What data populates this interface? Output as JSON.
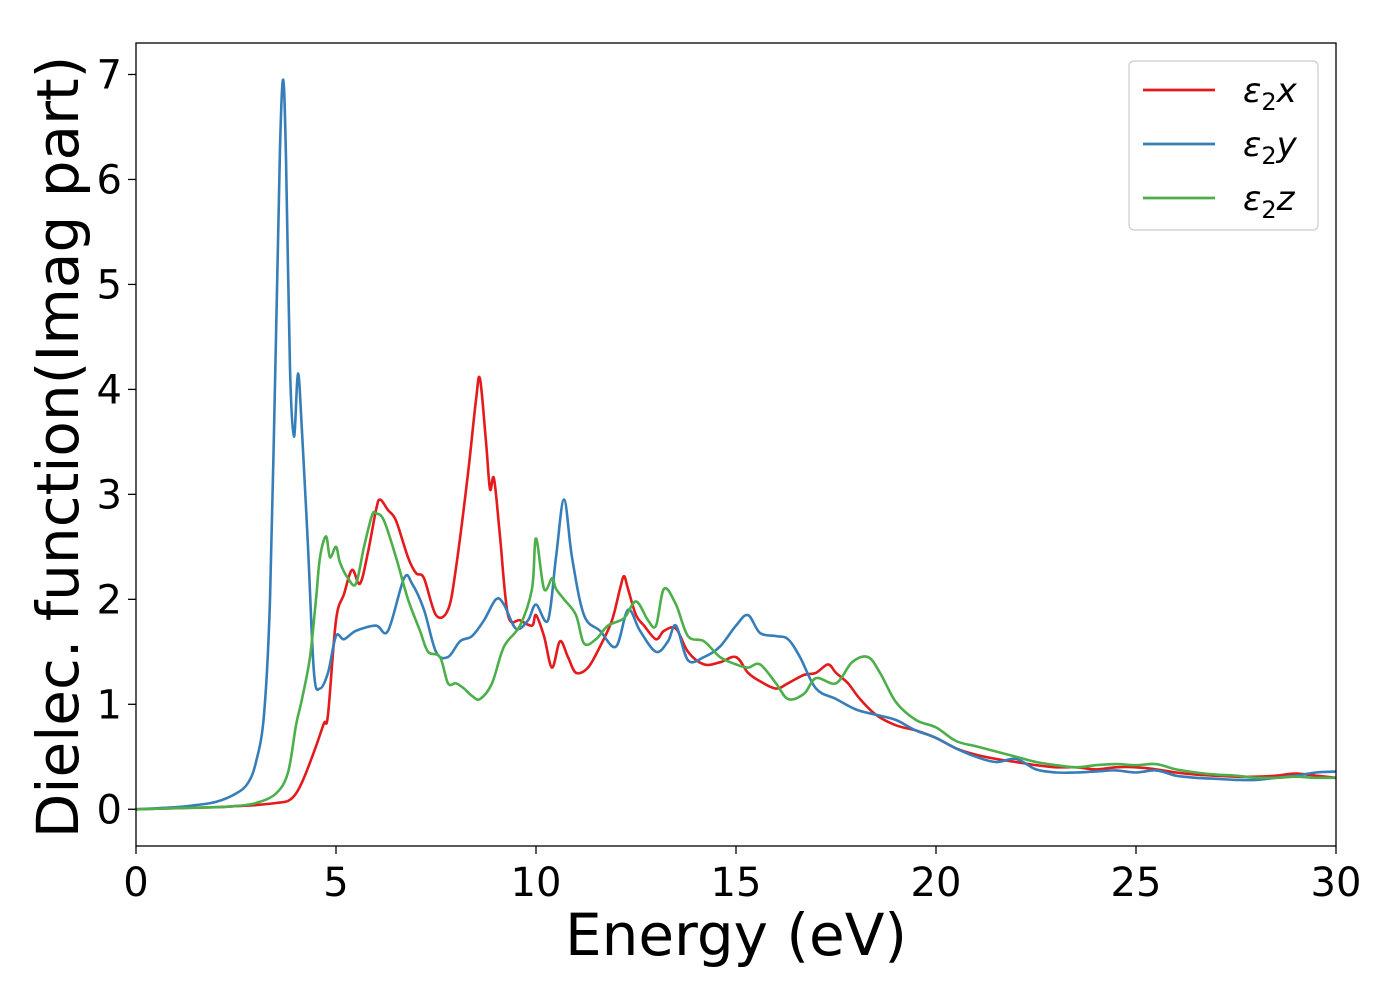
{
  "chart_data": {
    "type": "line",
    "xlabel": "Energy (eV)",
    "ylabel": "Dielec. function(Imag part)",
    "xlim": [
      0,
      30
    ],
    "ylim": [
      -0.35,
      7.3
    ],
    "xticks": [
      0,
      5,
      10,
      15,
      20,
      25,
      30
    ],
    "yticks": [
      0,
      1,
      2,
      3,
      4,
      5,
      6,
      7
    ],
    "xtick_labels": [
      "0",
      "5",
      "10",
      "15",
      "20",
      "25",
      "30"
    ],
    "ytick_labels": [
      "0",
      "1",
      "2",
      "3",
      "4",
      "5",
      "6",
      "7"
    ],
    "grid": false,
    "legend_position": "top-right",
    "series": [
      {
        "name": "ε₂x",
        "legend": {
          "base": "ε",
          "sub": "2",
          "var": "x"
        },
        "color": "#e41a1c",
        "x": [
          0,
          1,
          2,
          2.5,
          3,
          3.5,
          3.8,
          4,
          4.2,
          4.5,
          4.7,
          4.8,
          5,
          5.2,
          5.4,
          5.6,
          5.8,
          6,
          6.1,
          6.3,
          6.5,
          6.8,
          7,
          7.2,
          7.5,
          7.8,
          8,
          8.3,
          8.5,
          8.6,
          8.75,
          8.85,
          8.95,
          9.1,
          9.3,
          9.6,
          9.9,
          10,
          10.2,
          10.4,
          10.6,
          10.8,
          11,
          11.3,
          11.6,
          11.9,
          12.1,
          12.2,
          12.3,
          12.5,
          12.7,
          13,
          13.2,
          13.5,
          13.8,
          14.2,
          14.6,
          15,
          15.3,
          15.6,
          16,
          16.3,
          16.7,
          17,
          17.3,
          17.5,
          17.8,
          18.1,
          18.5,
          19,
          19.5,
          20,
          20.5,
          21,
          21.5,
          22,
          22.5,
          23,
          23.5,
          24,
          24.5,
          25,
          25.5,
          26,
          26.5,
          27,
          27.5,
          28,
          28.5,
          29,
          29.5,
          30
        ],
        "y": [
          0,
          0.01,
          0.02,
          0.03,
          0.04,
          0.06,
          0.08,
          0.15,
          0.3,
          0.6,
          0.82,
          0.9,
          1.8,
          2.05,
          2.28,
          2.15,
          2.45,
          2.85,
          2.95,
          2.85,
          2.75,
          2.4,
          2.25,
          2.2,
          1.85,
          1.9,
          2.3,
          3.2,
          3.9,
          4.1,
          3.5,
          3.05,
          3.15,
          2.6,
          1.85,
          1.8,
          1.75,
          1.85,
          1.65,
          1.35,
          1.6,
          1.45,
          1.3,
          1.35,
          1.55,
          1.8,
          2.1,
          2.22,
          2.1,
          1.85,
          1.75,
          1.62,
          1.7,
          1.72,
          1.5,
          1.38,
          1.4,
          1.45,
          1.3,
          1.22,
          1.15,
          1.2,
          1.28,
          1.3,
          1.38,
          1.3,
          1.2,
          1.05,
          0.9,
          0.8,
          0.75,
          0.68,
          0.58,
          0.52,
          0.48,
          0.45,
          0.42,
          0.4,
          0.4,
          0.38,
          0.4,
          0.4,
          0.38,
          0.35,
          0.33,
          0.32,
          0.31,
          0.31,
          0.32,
          0.34,
          0.32,
          0.3
        ]
      },
      {
        "name": "ε₂y",
        "legend": {
          "base": "ε",
          "sub": "2",
          "var": "y"
        },
        "color": "#377eb8",
        "x": [
          0,
          1,
          1.5,
          2,
          2.5,
          2.8,
          3,
          3.2,
          3.35,
          3.5,
          3.6,
          3.68,
          3.75,
          3.85,
          3.95,
          4.05,
          4.15,
          4.3,
          4.45,
          4.6,
          4.8,
          5,
          5.2,
          5.5,
          6,
          6.3,
          6.7,
          6.9,
          7.2,
          7.5,
          7.8,
          8.1,
          8.4,
          8.7,
          9,
          9.2,
          9.5,
          9.8,
          10,
          10.3,
          10.5,
          10.7,
          10.9,
          11.2,
          11.6,
          12,
          12.3,
          12.6,
          13,
          13.3,
          13.5,
          13.8,
          14.2,
          14.6,
          15,
          15.3,
          15.6,
          16,
          16.3,
          16.6,
          17,
          17.5,
          18,
          18.5,
          19,
          19.5,
          20,
          20.5,
          21,
          21.5,
          22,
          22.5,
          23,
          23.5,
          24,
          24.5,
          25,
          25.5,
          26,
          26.5,
          27,
          27.5,
          28,
          28.5,
          29,
          29.5,
          30
        ],
        "y": [
          0,
          0.02,
          0.04,
          0.07,
          0.15,
          0.25,
          0.45,
          0.9,
          2.0,
          4.5,
          6.3,
          6.95,
          6.2,
          4.2,
          3.55,
          4.15,
          3.6,
          2.5,
          1.3,
          1.15,
          1.3,
          1.65,
          1.62,
          1.7,
          1.75,
          1.7,
          2.2,
          2.15,
          1.9,
          1.5,
          1.45,
          1.6,
          1.65,
          1.8,
          2.0,
          1.95,
          1.72,
          1.8,
          1.95,
          1.8,
          2.4,
          2.95,
          2.4,
          1.85,
          1.7,
          1.55,
          1.9,
          1.7,
          1.5,
          1.6,
          1.75,
          1.42,
          1.45,
          1.55,
          1.75,
          1.85,
          1.68,
          1.65,
          1.62,
          1.45,
          1.15,
          1.05,
          0.95,
          0.9,
          0.85,
          0.75,
          0.68,
          0.58,
          0.5,
          0.45,
          0.48,
          0.38,
          0.35,
          0.35,
          0.36,
          0.37,
          0.35,
          0.37,
          0.32,
          0.3,
          0.29,
          0.28,
          0.28,
          0.3,
          0.32,
          0.35,
          0.36
        ]
      },
      {
        "name": "ε₂z",
        "legend": {
          "base": "ε",
          "sub": "2",
          "var": "z"
        },
        "color": "#4daf4a",
        "x": [
          0,
          1,
          2,
          2.5,
          3,
          3.5,
          3.8,
          4,
          4.15,
          4.35,
          4.5,
          4.6,
          4.75,
          4.85,
          5,
          5.1,
          5.3,
          5.5,
          5.7,
          5.9,
          6,
          6.2,
          6.5,
          6.8,
          7.1,
          7.3,
          7.6,
          7.8,
          8,
          8.2,
          8.4,
          8.6,
          8.9,
          9.2,
          9.6,
          9.9,
          10,
          10.2,
          10.4,
          10.5,
          10.7,
          11,
          11.2,
          11.5,
          11.8,
          12.2,
          12.5,
          12.8,
          13,
          13.2,
          13.5,
          13.8,
          14.2,
          14.6,
          15,
          15.3,
          15.6,
          16,
          16.3,
          16.7,
          17,
          17.5,
          17.9,
          18.3,
          18.6,
          19,
          19.5,
          20,
          20.5,
          21,
          21.5,
          22,
          22.5,
          23,
          23.5,
          24,
          24.5,
          25,
          25.5,
          26,
          26.5,
          27,
          27.5,
          28,
          28.5,
          29,
          29.5,
          30
        ],
        "y": [
          0,
          0.01,
          0.02,
          0.03,
          0.06,
          0.15,
          0.35,
          0.8,
          1.05,
          1.45,
          2.0,
          2.4,
          2.6,
          2.4,
          2.5,
          2.35,
          2.2,
          2.15,
          2.5,
          2.8,
          2.82,
          2.75,
          2.4,
          2.0,
          1.7,
          1.5,
          1.45,
          1.2,
          1.2,
          1.15,
          1.08,
          1.05,
          1.2,
          1.55,
          1.75,
          2.1,
          2.58,
          2.1,
          2.2,
          2.1,
          2.0,
          1.85,
          1.58,
          1.62,
          1.75,
          1.82,
          1.98,
          1.8,
          1.75,
          2.1,
          1.95,
          1.65,
          1.6,
          1.45,
          1.38,
          1.35,
          1.38,
          1.2,
          1.05,
          1.1,
          1.25,
          1.2,
          1.4,
          1.45,
          1.3,
          1.02,
          0.85,
          0.78,
          0.65,
          0.6,
          0.55,
          0.5,
          0.45,
          0.42,
          0.4,
          0.42,
          0.43,
          0.42,
          0.43,
          0.38,
          0.35,
          0.33,
          0.32,
          0.3,
          0.3,
          0.31,
          0.3,
          0.3
        ]
      }
    ]
  }
}
